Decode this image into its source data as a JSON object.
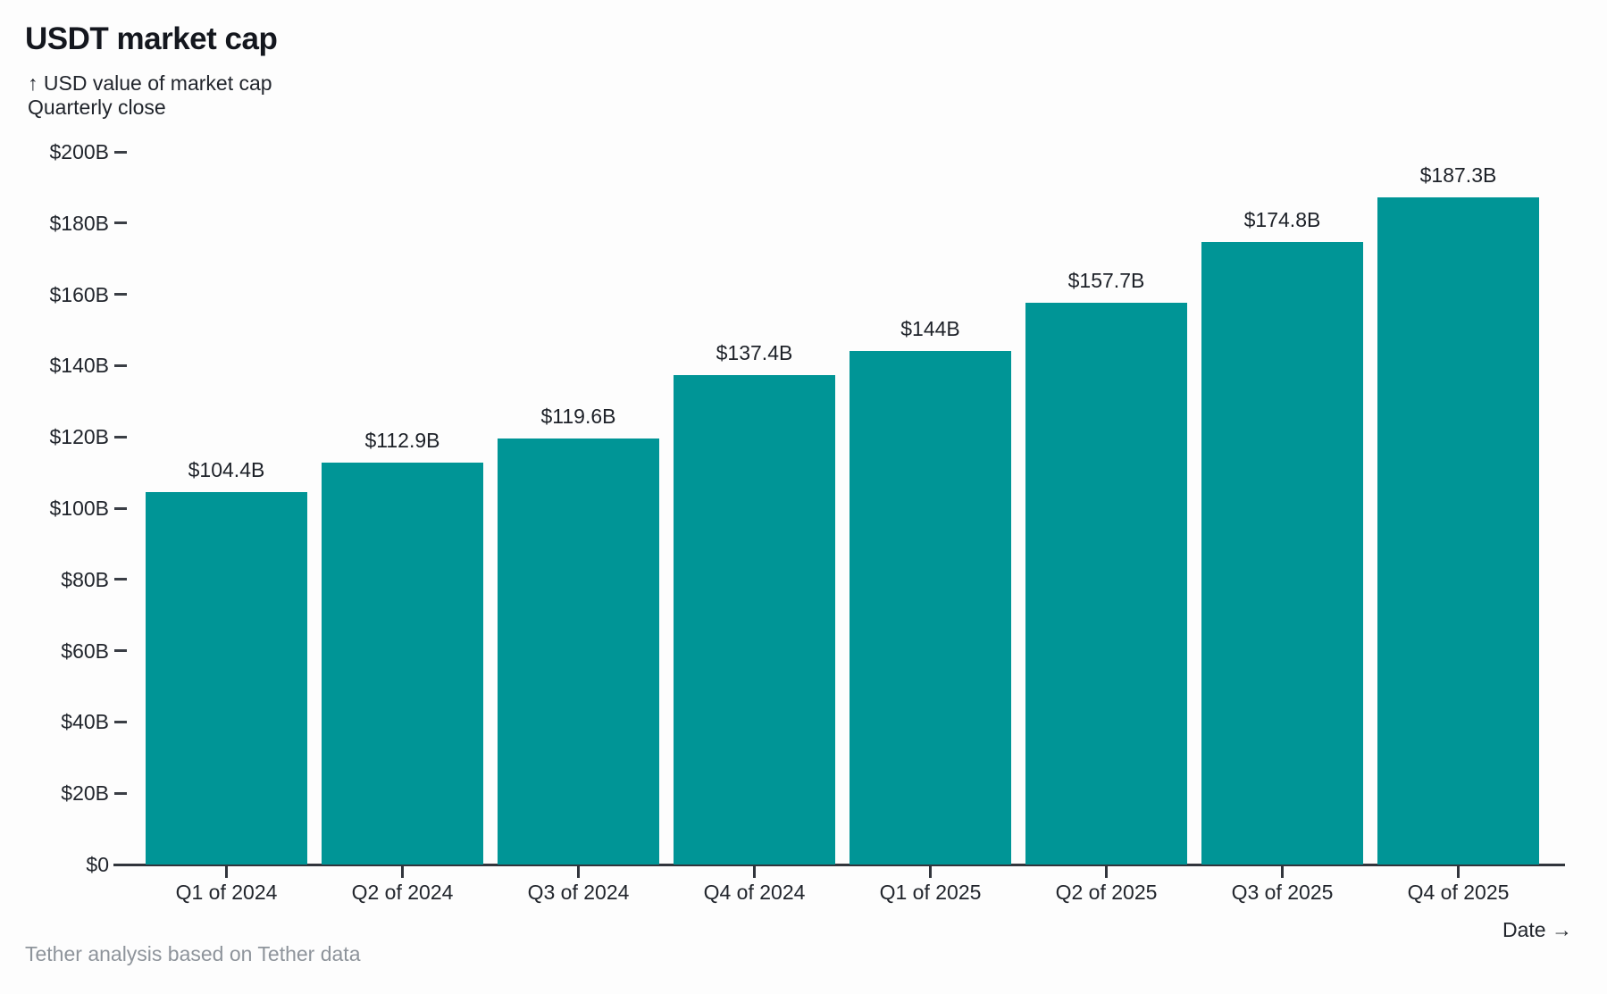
{
  "header": {
    "title": "USDT market cap",
    "subtitle_arrow": "↑",
    "subtitle": "USD value of market cap",
    "subtitle_line2": "Quarterly close"
  },
  "chart_data": {
    "type": "bar",
    "title": "USDT market cap",
    "ylabel": "USD value of market cap",
    "subtitle": "Quarterly close",
    "xlabel": "Date",
    "categories": [
      "Q1 of 2024",
      "Q2 of 2024",
      "Q3 of 2024",
      "Q4 of 2024",
      "Q1 of 2025",
      "Q2 of 2025",
      "Q3 of 2025",
      "Q4 of 2025"
    ],
    "values": [
      104.4,
      112.9,
      119.6,
      137.4,
      144,
      157.7,
      174.8,
      187.3
    ],
    "value_labels": [
      "$104.4B",
      "$112.9B",
      "$119.6B",
      "$137.4B",
      "$144B",
      "$157.7B",
      "$174.8B",
      "$187.3B"
    ],
    "unit": "billions of USD",
    "ylim": [
      0,
      200
    ],
    "y_tick_values": [
      0,
      20,
      40,
      60,
      80,
      100,
      120,
      140,
      160,
      180,
      200
    ],
    "y_tick_labels": [
      "$0",
      "$20B",
      "$40B",
      "$60B",
      "$80B",
      "$100B",
      "$120B",
      "$140B",
      "$160B",
      "$180B",
      "$200B"
    ],
    "grid": false,
    "legend": null,
    "bar_color": "#009596"
  },
  "footer": {
    "source": "Tether analysis based on Tether data",
    "xaxis_label": "Date",
    "xaxis_arrow": "→"
  }
}
